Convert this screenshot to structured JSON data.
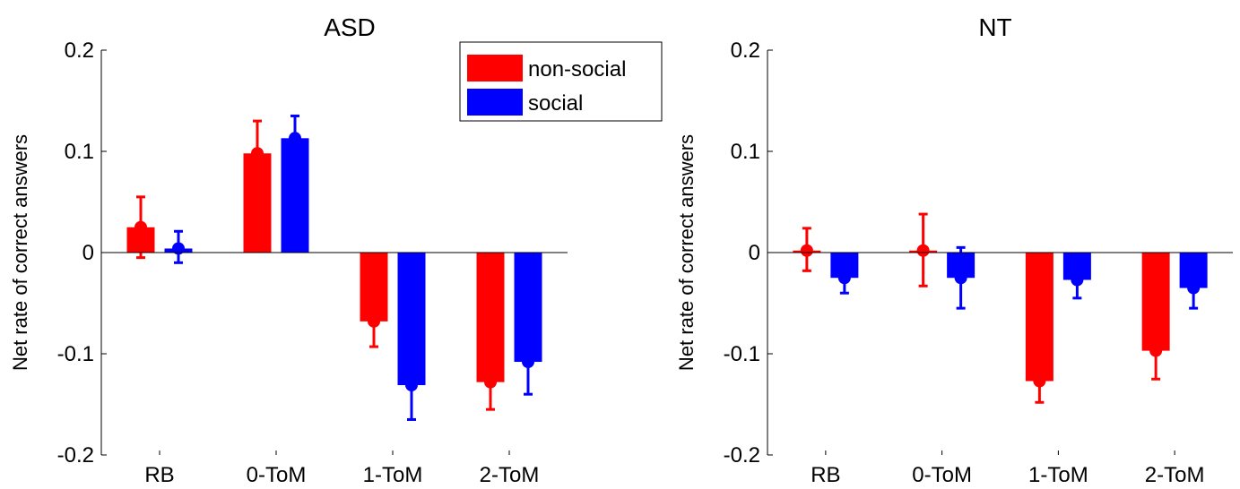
{
  "chart_data": [
    {
      "type": "bar",
      "title": "ASD",
      "ylabel": "Net rate of correct answers",
      "xlabel": "",
      "categories": [
        "RB",
        "0-ToM",
        "1-ToM",
        "2-ToM"
      ],
      "ylim": [
        -0.2,
        0.2
      ],
      "yticks": [
        -0.2,
        -0.1,
        0,
        0.1,
        0.2
      ],
      "ytick_labels": [
        "-0.2",
        "-0.1",
        "0",
        "0.1",
        "0.2"
      ],
      "legend": {
        "placement": "top-right",
        "entries": [
          "non-social",
          "social"
        ]
      },
      "series": [
        {
          "name": "non-social",
          "color": "#ff0000",
          "values": [
            0.025,
            0.098,
            -0.068,
            -0.128
          ],
          "err_lo": [
            -0.005,
            0.098,
            -0.093,
            -0.155
          ],
          "err_hi": [
            0.055,
            0.13,
            -0.068,
            -0.128
          ]
        },
        {
          "name": "social",
          "color": "#0000ff",
          "values": [
            0.004,
            0.113,
            -0.131,
            -0.108
          ],
          "err_lo": [
            -0.01,
            0.113,
            -0.165,
            -0.14
          ],
          "err_hi": [
            0.021,
            0.135,
            -0.131,
            -0.108
          ]
        }
      ]
    },
    {
      "type": "bar",
      "title": "NT",
      "ylabel": "Net rate of correct answers",
      "xlabel": "",
      "categories": [
        "RB",
        "0-ToM",
        "1-ToM",
        "2-ToM"
      ],
      "ylim": [
        -0.2,
        0.2
      ],
      "yticks": [
        -0.2,
        -0.1,
        0,
        0.1,
        0.2
      ],
      "ytick_labels": [
        "-0.2",
        "-0.1",
        "0",
        "0.1",
        "0.2"
      ],
      "series": [
        {
          "name": "non-social",
          "color": "#ff0000",
          "values": [
            0.002,
            0.002,
            -0.127,
            -0.097
          ],
          "err_lo": [
            -0.018,
            -0.033,
            -0.148,
            -0.125
          ],
          "err_hi": [
            0.024,
            0.038,
            -0.127,
            -0.097
          ]
        },
        {
          "name": "social",
          "color": "#0000ff",
          "values": [
            -0.025,
            -0.025,
            -0.027,
            -0.035
          ],
          "err_lo": [
            -0.04,
            -0.055,
            -0.045,
            -0.055
          ],
          "err_hi": [
            -0.025,
            0.005,
            -0.027,
            -0.035
          ]
        }
      ]
    }
  ]
}
